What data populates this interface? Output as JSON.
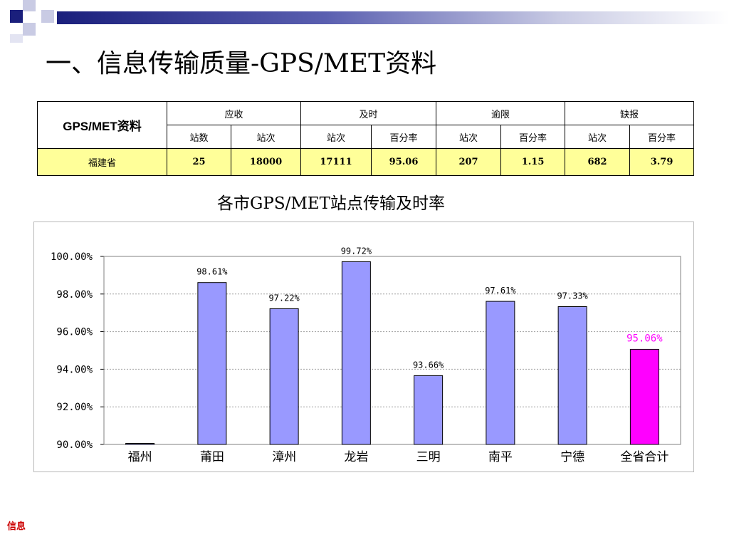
{
  "slide": {
    "title": "一、信息传输质量-GPS/MET资料",
    "footer": "信息"
  },
  "summary_table": {
    "corner_label": "GPS/MET资料",
    "groups": [
      "应收",
      "及时",
      "逾限",
      "缺报"
    ],
    "subheaders": [
      "站数",
      "站次",
      "站次",
      "百分率",
      "站次",
      "百分率",
      "站次",
      "百分率"
    ],
    "rows": [
      {
        "name": "福建省",
        "values": [
          "25",
          "18000",
          "17111",
          "95.06",
          "207",
          "1.15",
          "682",
          "3.79"
        ]
      }
    ]
  },
  "chart_data": {
    "type": "bar",
    "title": "各市GPS/MET站点传输及时率",
    "categories": [
      "福州",
      "莆田",
      "漳州",
      "龙岩",
      "三明",
      "南平",
      "宁德",
      "全省合计"
    ],
    "values": [
      90.0,
      98.61,
      97.22,
      99.72,
      93.66,
      97.61,
      97.33,
      95.06
    ],
    "data_labels": [
      "",
      "98.61%",
      "97.22%",
      "99.72%",
      "93.66%",
      "97.61%",
      "97.33%",
      "95.06%"
    ],
    "highlight_index": 7,
    "ylim": [
      90,
      100
    ],
    "yticks": [
      90,
      92,
      94,
      96,
      98,
      100
    ],
    "ytick_labels": [
      "90.00%",
      "92.00%",
      "94.00%",
      "96.00%",
      "98.00%",
      "100.00%"
    ],
    "grid": true,
    "colors": {
      "bar": "#9999ff",
      "highlight": "#ff00ff",
      "highlight_label": "#ff00ff",
      "grid": "#a0a0a0"
    },
    "xlabel": "",
    "ylabel": ""
  }
}
